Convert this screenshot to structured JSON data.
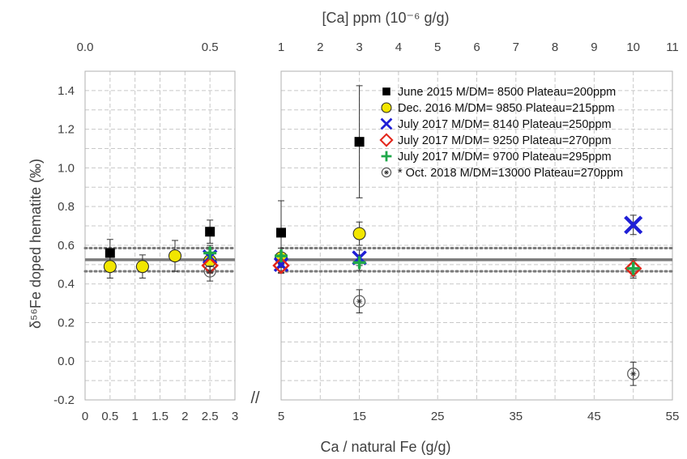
{
  "chart_data": {
    "type": "scatter",
    "top_axis_title": "[Ca] ppm (10⁻⁶ g/g)",
    "xlabel": "Ca / natural Fe (g/g)",
    "ylabel": "δ⁵⁶Fe doped hematite (‰)",
    "axis_break_mark": "//",
    "ylim": [
      -0.2,
      1.5
    ],
    "y_ticks": [
      "-0.2",
      "0.0",
      "0.2",
      "0.4",
      "0.6",
      "0.8",
      "1.0",
      "1.2",
      "1.4"
    ],
    "x_left_panel": {
      "xlim": [
        0,
        3
      ],
      "ticks": [
        "0",
        "0.5",
        "1",
        "1.5",
        "2",
        "2.5",
        "3"
      ]
    },
    "x_right_panel": {
      "xlim": [
        5,
        55
      ],
      "ticks": [
        "5",
        "15",
        "25",
        "35",
        "45",
        "55"
      ]
    },
    "top_ticks_left": [
      "0.0",
      "0.5"
    ],
    "top_ticks_right": [
      "1",
      "2",
      "3",
      "4",
      "5",
      "6",
      "7",
      "8",
      "9",
      "10",
      "11"
    ],
    "grid": true,
    "reference_lines": {
      "mean": 0.525,
      "band_low": 0.465,
      "band_high": 0.585
    },
    "legend_position": "top-right",
    "series": [
      {
        "name": "June 2015 M/DM=  8500 Plateau=200ppm",
        "marker": "filled-square",
        "color": "#000000",
        "points": [
          {
            "x": 0.5,
            "y": 0.56,
            "err": 0.07
          },
          {
            "x": 2.5,
            "y": 0.67,
            "err": 0.06
          },
          {
            "x": 5,
            "y": 0.665,
            "err": 0.165
          },
          {
            "x": 15,
            "y": 1.135,
            "err": 0.29
          }
        ]
      },
      {
        "name": "Dec. 2016 M/DM=  9850 Plateau=215ppm",
        "marker": "yellow-circle",
        "color": "#f2e600",
        "points": [
          {
            "x": 0.5,
            "y": 0.49,
            "err": 0.06
          },
          {
            "x": 1.15,
            "y": 0.49,
            "err": 0.06
          },
          {
            "x": 1.8,
            "y": 0.545,
            "err": 0.08
          },
          {
            "x": 2.5,
            "y": 0.52,
            "err": 0.06
          },
          {
            "x": 5,
            "y": 0.535,
            "err": 0.05
          },
          {
            "x": 15,
            "y": 0.66,
            "err": 0.06
          }
        ]
      },
      {
        "name": "July  2017 M/DM=  8140 Plateau=250ppm",
        "marker": "blue-x",
        "color": "#1f1fd6",
        "points": [
          {
            "x": 2.5,
            "y": 0.54,
            "err": 0.05
          },
          {
            "x": 5,
            "y": 0.5,
            "err": 0.04
          },
          {
            "x": 15,
            "y": 0.535,
            "err": 0.04
          },
          {
            "x": 50,
            "y": 0.705,
            "err": 0.05
          }
        ]
      },
      {
        "name": "July  2017 M/DM=  9250 Plateau=270ppm",
        "marker": "red-diamond",
        "color": "#e3251a",
        "points": [
          {
            "x": 2.5,
            "y": 0.495,
            "err": 0.04
          },
          {
            "x": 5,
            "y": 0.495,
            "err": 0.04
          },
          {
            "x": 50,
            "y": 0.48,
            "err": 0.05
          }
        ]
      },
      {
        "name": "July  2017 M/DM=  9700 Plateau=295ppm",
        "marker": "green-plus",
        "color": "#1fa84a",
        "points": [
          {
            "x": 2.5,
            "y": 0.56,
            "err": 0.04
          },
          {
            "x": 5,
            "y": 0.545,
            "err": 0.04
          },
          {
            "x": 15,
            "y": 0.51,
            "err": 0.04
          },
          {
            "x": 50,
            "y": 0.48,
            "err": 0.04
          }
        ]
      },
      {
        "name": "*  Oct. 2018 M/DM=13000 Plateau=270ppm",
        "marker": "open-circle-asterisk",
        "color": "#000000",
        "points": [
          {
            "x": 2.5,
            "y": 0.465,
            "err": 0.05
          },
          {
            "x": 15,
            "y": 0.31,
            "err": 0.06
          },
          {
            "x": 50,
            "y": -0.065,
            "err": 0.06
          }
        ]
      }
    ]
  }
}
